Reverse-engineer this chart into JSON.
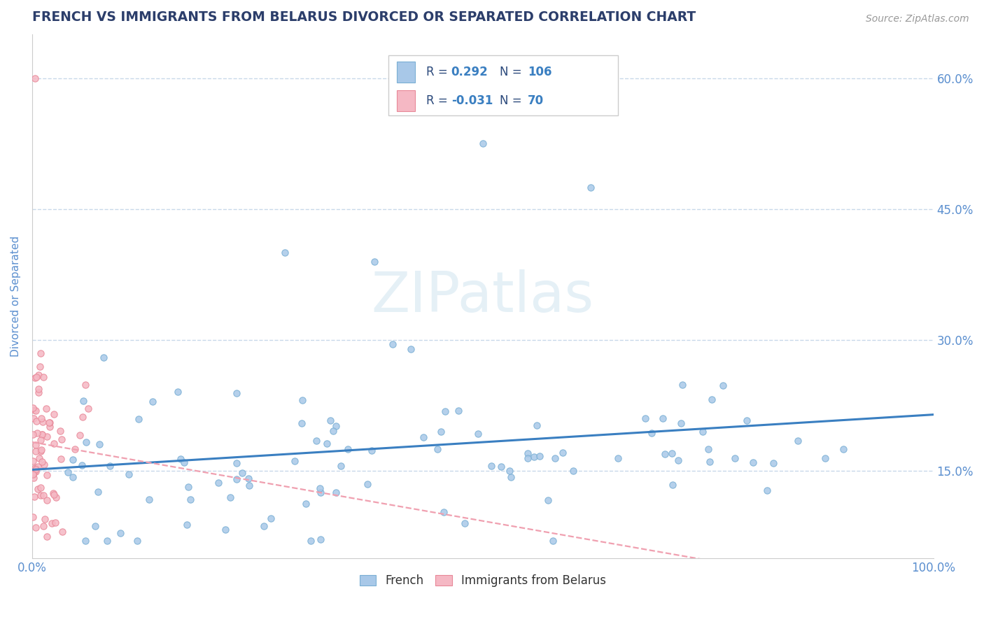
{
  "title": "FRENCH VS IMMIGRANTS FROM BELARUS DIVORCED OR SEPARATED CORRELATION CHART",
  "source": "Source: ZipAtlas.com",
  "ylabel": "Divorced or Separated",
  "xlim": [
    0.0,
    1.0
  ],
  "ylim": [
    0.05,
    0.65
  ],
  "xtick_positions": [
    0.0,
    0.1,
    0.2,
    0.3,
    0.4,
    0.5,
    0.6,
    0.7,
    0.8,
    0.9,
    1.0
  ],
  "xticklabels": [
    "0.0%",
    "",
    "",
    "",
    "",
    "",
    "",
    "",
    "",
    "",
    "100.0%"
  ],
  "ytick_positions": [
    0.15,
    0.3,
    0.45,
    0.6
  ],
  "yticklabels": [
    "15.0%",
    "30.0%",
    "45.0%",
    "60.0%"
  ],
  "french_scatter_color": "#a8c8e8",
  "french_edge_color": "#7aafd4",
  "belarus_scatter_color": "#f5b8c4",
  "belarus_edge_color": "#e88898",
  "french_line_color": "#3a7fc1",
  "belarus_line_color": "#f0a0b0",
  "french_N": 106,
  "belarus_N": 70,
  "french_R": 0.292,
  "belarus_R": -0.031,
  "watermark_text": "ZIPatlas",
  "watermark_color": "#d0e4f0",
  "background_color": "#ffffff",
  "grid_color": "#c8d8ea",
  "title_color": "#2c3e6b",
  "right_tick_color": "#5b8fcf",
  "left_tick_color": "#5b8fcf",
  "source_color": "#999999",
  "legend_text_color": "#2c4a7c",
  "legend_value_color": "#3a7fc1",
  "bottom_legend_text_color": "#333333"
}
